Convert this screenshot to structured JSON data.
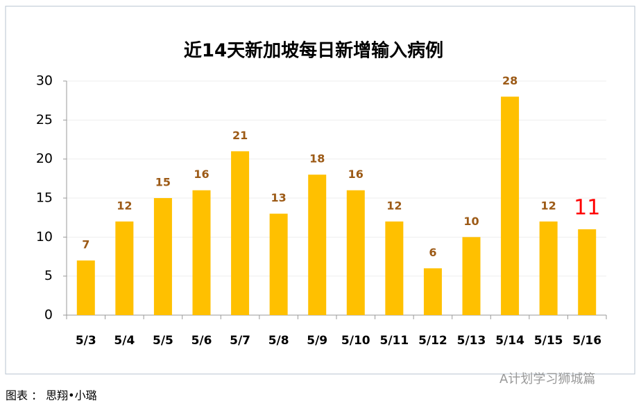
{
  "chart_data": {
    "type": "bar",
    "title": "近14天新加坡每日新增输入病例",
    "categories": [
      "5/3",
      "5/4",
      "5/5",
      "5/6",
      "5/7",
      "5/8",
      "5/9",
      "5/10",
      "5/11",
      "5/12",
      "5/13",
      "5/14",
      "5/15",
      "5/16"
    ],
    "values": [
      7,
      12,
      15,
      16,
      21,
      13,
      18,
      16,
      12,
      6,
      10,
      28,
      12,
      11
    ],
    "color": "#ffc000",
    "label_color": "#9c5a16",
    "highlight_index": 13,
    "highlight_color": "#ff0000",
    "ylim": [
      0,
      30
    ],
    "yticks": [
      0,
      5,
      10,
      15,
      20,
      25,
      30
    ],
    "grid": true
  },
  "caption": "图表 ： 思翔•小璐",
  "watermark": "A计划学习狮城篇"
}
